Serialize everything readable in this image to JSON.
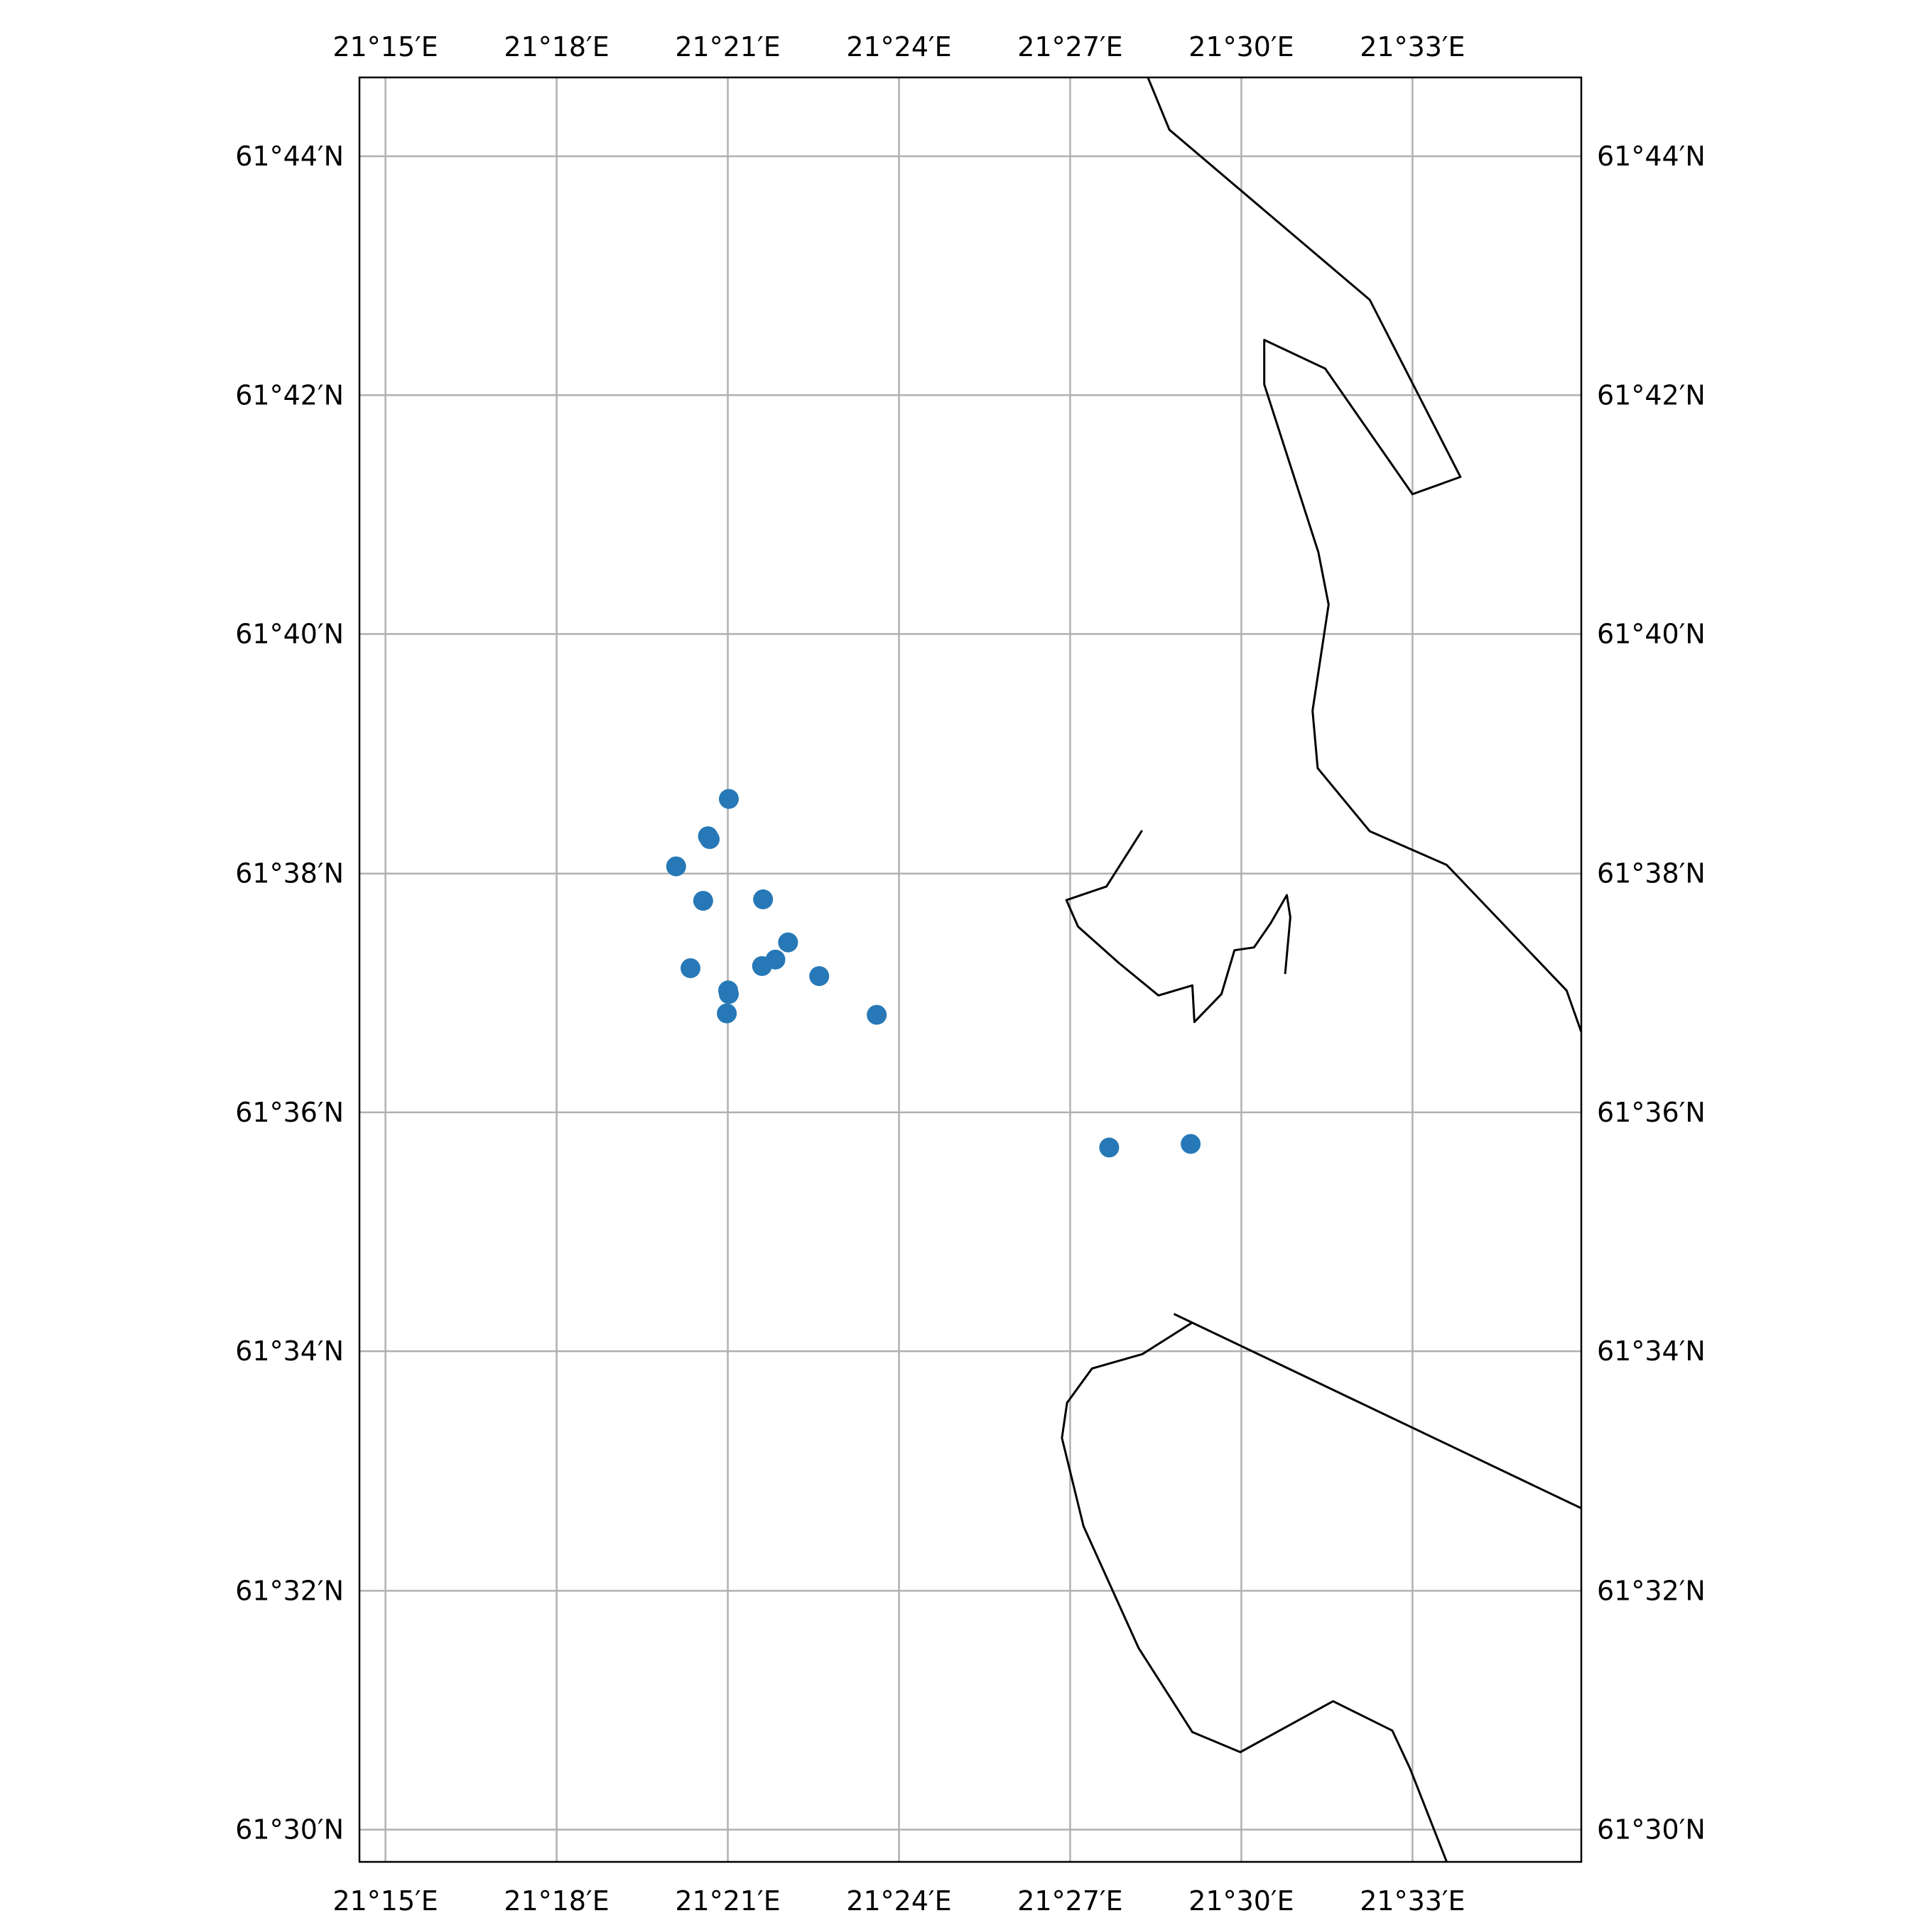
{
  "map": {
    "lon_labels": [
      "21°15′E",
      "21°18′E",
      "21°21′E",
      "21°24′E",
      "21°27′E",
      "21°30′E",
      "21°33′E"
    ],
    "lat_labels": [
      "61°44′N",
      "61°42′N",
      "61°40′N",
      "61°38′N",
      "61°36′N",
      "61°34′N",
      "61°32′N",
      "61°30′N"
    ]
  },
  "chart_data": {
    "type": "scatter",
    "projection": "geographic",
    "grid": true,
    "xlim": [
      21.2424,
      21.5993
    ],
    "ylim": [
      61.4955,
      61.7443
    ],
    "xticks": [
      21.25,
      21.3,
      21.35,
      21.4,
      21.45,
      21.5,
      21.55
    ],
    "yticks": [
      61.7333,
      61.7,
      61.6667,
      61.6333,
      61.6,
      61.5667,
      61.5333,
      61.5
    ],
    "point_color": "#2778b6",
    "points": [
      {
        "lon": 21.3503,
        "lat": 61.6437
      },
      {
        "lon": 21.3442,
        "lat": 61.6385
      },
      {
        "lon": 21.3447,
        "lat": 61.6381
      },
      {
        "lon": 21.3349,
        "lat": 61.6343
      },
      {
        "lon": 21.3428,
        "lat": 61.6295
      },
      {
        "lon": 21.3603,
        "lat": 61.6297
      },
      {
        "lon": 21.3676,
        "lat": 61.6237
      },
      {
        "lon": 21.3639,
        "lat": 61.6213
      },
      {
        "lon": 21.36,
        "lat": 61.6204
      },
      {
        "lon": 21.3391,
        "lat": 61.6201
      },
      {
        "lon": 21.3767,
        "lat": 61.619
      },
      {
        "lon": 21.3501,
        "lat": 61.617
      },
      {
        "lon": 21.3503,
        "lat": 61.6165
      },
      {
        "lon": 21.3497,
        "lat": 61.6138
      },
      {
        "lon": 21.3935,
        "lat": 61.6136
      },
      {
        "lon": 21.4852,
        "lat": 61.5956
      },
      {
        "lon": 21.4614,
        "lat": 61.5951
      }
    ],
    "coastlines": [
      [
        [
          21.4727,
          61.7443
        ],
        [
          21.479,
          61.737
        ],
        [
          21.5375,
          61.7133
        ],
        [
          21.564,
          61.6886
        ],
        [
          21.55,
          61.6862
        ],
        [
          21.5245,
          61.7037
        ],
        [
          21.5067,
          61.7077
        ],
        [
          21.5067,
          61.7015
        ],
        [
          21.5225,
          61.6781
        ],
        [
          21.5255,
          61.6708
        ],
        [
          21.5208,
          61.656
        ],
        [
          21.5223,
          61.648
        ],
        [
          21.5375,
          61.6392
        ],
        [
          21.56,
          61.6345
        ],
        [
          21.58,
          61.6245
        ],
        [
          21.595,
          61.617
        ],
        [
          21.5993,
          61.6112
        ]
      ],
      [
        [
          21.471,
          61.6393
        ],
        [
          21.4606,
          61.6315
        ],
        [
          21.4489,
          61.6296
        ],
        [
          21.4523,
          61.6259
        ],
        [
          21.4643,
          61.6208
        ],
        [
          21.4758,
          61.6163
        ],
        [
          21.4857,
          61.6177
        ],
        [
          21.4863,
          61.6126
        ],
        [
          21.4942,
          61.6165
        ],
        [
          21.498,
          61.6226
        ],
        [
          21.5037,
          61.623
        ],
        [
          21.5086,
          61.6264
        ],
        [
          21.5133,
          61.6303
        ],
        [
          21.5143,
          61.6272
        ],
        [
          21.5128,
          61.6193
        ]
      ],
      [
        [
          21.4857,
          61.5707
        ],
        [
          21.4711,
          61.5663
        ],
        [
          21.4564,
          61.5643
        ],
        [
          21.4491,
          61.5595
        ],
        [
          21.4476,
          61.5546
        ],
        [
          21.4539,
          61.5423
        ],
        [
          21.47,
          61.5253
        ],
        [
          21.4857,
          61.5136
        ],
        [
          21.4997,
          61.5108
        ],
        [
          21.5268,
          61.5179
        ],
        [
          21.5441,
          61.5138
        ],
        [
          21.5493,
          61.5085
        ],
        [
          21.56,
          61.4955
        ]
      ],
      [
        [
          21.5993,
          61.5448
        ],
        [
          21.4803,
          61.5719
        ]
      ]
    ]
  }
}
